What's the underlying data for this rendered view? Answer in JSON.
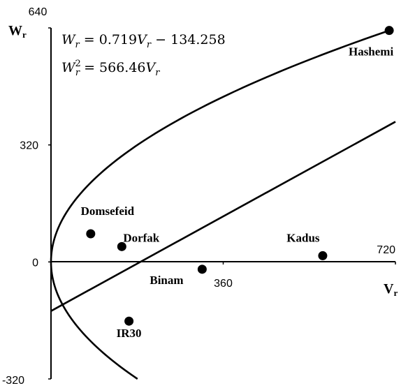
{
  "chart_data": {
    "type": "scatter",
    "title": "",
    "xlabel": "V",
    "xlabel_sub": "r",
    "ylabel": "W",
    "ylabel_sub": "r",
    "xlim": [
      0,
      720
    ],
    "ylim": [
      -320,
      640
    ],
    "x_ticks": [
      {
        "value": 360,
        "label": "360"
      },
      {
        "value": 720,
        "label": "720"
      }
    ],
    "y_ticks": [
      {
        "value": 640,
        "label": "640"
      },
      {
        "value": 320,
        "label": "320"
      },
      {
        "value": 0,
        "label": "0"
      },
      {
        "value": -320,
        "label": "-320"
      }
    ],
    "grid": false,
    "points": [
      {
        "name": "Hashemi",
        "x": 707,
        "y": 633
      },
      {
        "name": "Domsefeid",
        "x": 83,
        "y": 77
      },
      {
        "name": "Dorfak",
        "x": 148,
        "y": 42
      },
      {
        "name": "Kadus",
        "x": 568,
        "y": 17
      },
      {
        "name": "Binam",
        "x": 316,
        "y": -20
      },
      {
        "name": "IR30",
        "x": 163,
        "y": -162
      }
    ],
    "lines": [
      {
        "type": "linear",
        "slope": 0.719,
        "intercept": -134.258,
        "equation": "W_r = 0.719V_r − 134.258"
      },
      {
        "type": "parabola",
        "coef": 566.46,
        "equation": "W_r² = 566.46V_r"
      }
    ]
  }
}
